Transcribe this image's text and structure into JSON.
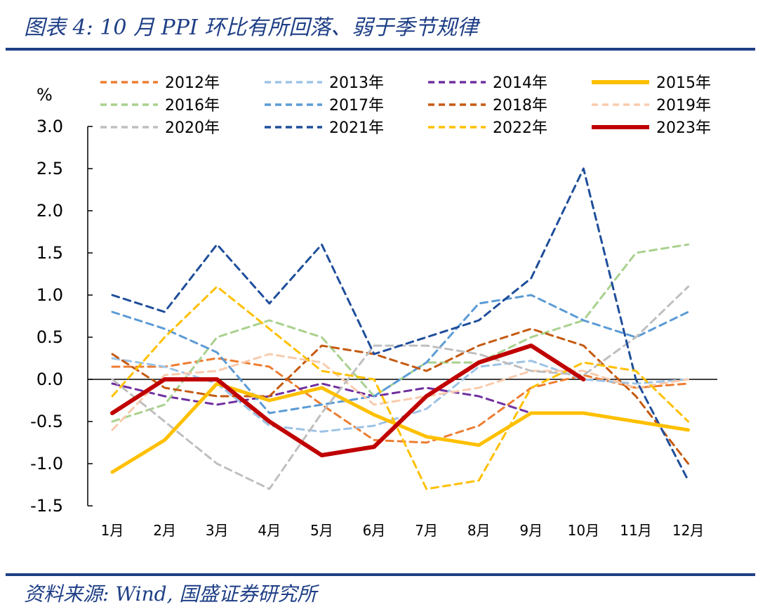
{
  "header": {
    "title": "图表 4:  10 月 PPI 环比有所回落、弱于季节规律"
  },
  "footer": {
    "source": "资料来源:  Wind,  国盛证券研究所"
  },
  "chart_data": {
    "type": "line",
    "title": "10 月 PPI 环比有所回落、弱于季节规律",
    "ylabel": "%",
    "xlabel": "",
    "ylim": [
      -1.5,
      3.0
    ],
    "yticks": [
      "3.0",
      "2.5",
      "2.0",
      "1.5",
      "1.0",
      "0.5",
      "0.0",
      "-0.5",
      "-1.0",
      "-1.5"
    ],
    "ytick_values": [
      3.0,
      2.5,
      2.0,
      1.5,
      1.0,
      0.5,
      0.0,
      -0.5,
      -1.0,
      -1.5
    ],
    "categories": [
      "1月",
      "2月",
      "3月",
      "4月",
      "5月",
      "6月",
      "7月",
      "8月",
      "9月",
      "10月",
      "11月",
      "12月"
    ],
    "legend_position": "top",
    "series": [
      {
        "name": "2012年",
        "color": "#ed7d31",
        "dashed": true,
        "values": [
          0.15,
          0.15,
          0.25,
          0.15,
          -0.3,
          -0.72,
          -0.75,
          -0.55,
          -0.1,
          0.05,
          -0.1,
          -0.05
        ]
      },
      {
        "name": "2013年",
        "color": "#9dc3e6",
        "dashed": true,
        "values": [
          0.25,
          0.15,
          -0.05,
          -0.55,
          -0.62,
          -0.55,
          -0.35,
          0.15,
          0.22,
          0.0,
          -0.05,
          0.0
        ]
      },
      {
        "name": "2014年",
        "color": "#7030a0",
        "dashed": true,
        "values": [
          -0.05,
          -0.2,
          -0.3,
          -0.2,
          -0.05,
          -0.2,
          -0.1,
          -0.2,
          -0.4,
          null,
          null,
          -0.6
        ]
      },
      {
        "name": "2015年",
        "color": "#ffc000",
        "dashed": false,
        "values": [
          -1.1,
          -0.72,
          -0.05,
          -0.25,
          -0.1,
          -0.42,
          -0.68,
          -0.78,
          -0.4,
          -0.4,
          -0.5,
          -0.6
        ]
      },
      {
        "name": "2016年",
        "color": "#a9d18e",
        "dashed": true,
        "values": [
          -0.5,
          -0.3,
          0.5,
          0.7,
          0.5,
          -0.2,
          0.2,
          0.2,
          0.5,
          0.7,
          1.5,
          1.6
        ]
      },
      {
        "name": "2017年",
        "color": "#5b9bd5",
        "dashed": true,
        "values": [
          0.8,
          0.6,
          0.32,
          -0.4,
          -0.3,
          -0.2,
          0.2,
          0.9,
          1.0,
          0.7,
          0.5,
          0.8
        ]
      },
      {
        "name": "2018年",
        "color": "#c55a11",
        "dashed": true,
        "values": [
          0.3,
          -0.1,
          -0.2,
          -0.2,
          0.4,
          0.3,
          0.1,
          0.4,
          0.6,
          0.4,
          -0.2,
          -1.0
        ]
      },
      {
        "name": "2019年",
        "color": "#f8cbad",
        "dashed": true,
        "values": [
          -0.6,
          0.05,
          0.1,
          0.3,
          0.2,
          -0.3,
          -0.2,
          -0.1,
          0.1,
          0.1,
          -0.1,
          0.0
        ]
      },
      {
        "name": "2020年",
        "color": "#bfbfbf",
        "dashed": true,
        "values": [
          0.0,
          -0.5,
          -1.0,
          -1.3,
          -0.4,
          0.4,
          0.4,
          0.3,
          0.1,
          0.05,
          0.5,
          1.1
        ]
      },
      {
        "name": "2021年",
        "color": "#1f4e9a",
        "dashed": true,
        "values": [
          1.0,
          0.8,
          1.6,
          0.9,
          1.6,
          0.3,
          0.5,
          0.7,
          1.2,
          2.5,
          0.0,
          -1.2
        ]
      },
      {
        "name": "2022年",
        "color": "#ffc000",
        "dashed": true,
        "values": [
          -0.2,
          0.5,
          1.1,
          0.6,
          0.1,
          0.0,
          -1.3,
          -1.2,
          -0.1,
          0.2,
          0.1,
          -0.5
        ]
      },
      {
        "name": "2023年",
        "color": "#c00000",
        "dashed": false,
        "values": [
          -0.4,
          0.0,
          0.0,
          -0.5,
          -0.9,
          -0.8,
          -0.2,
          0.2,
          0.4,
          0.0,
          null,
          null
        ]
      }
    ]
  }
}
